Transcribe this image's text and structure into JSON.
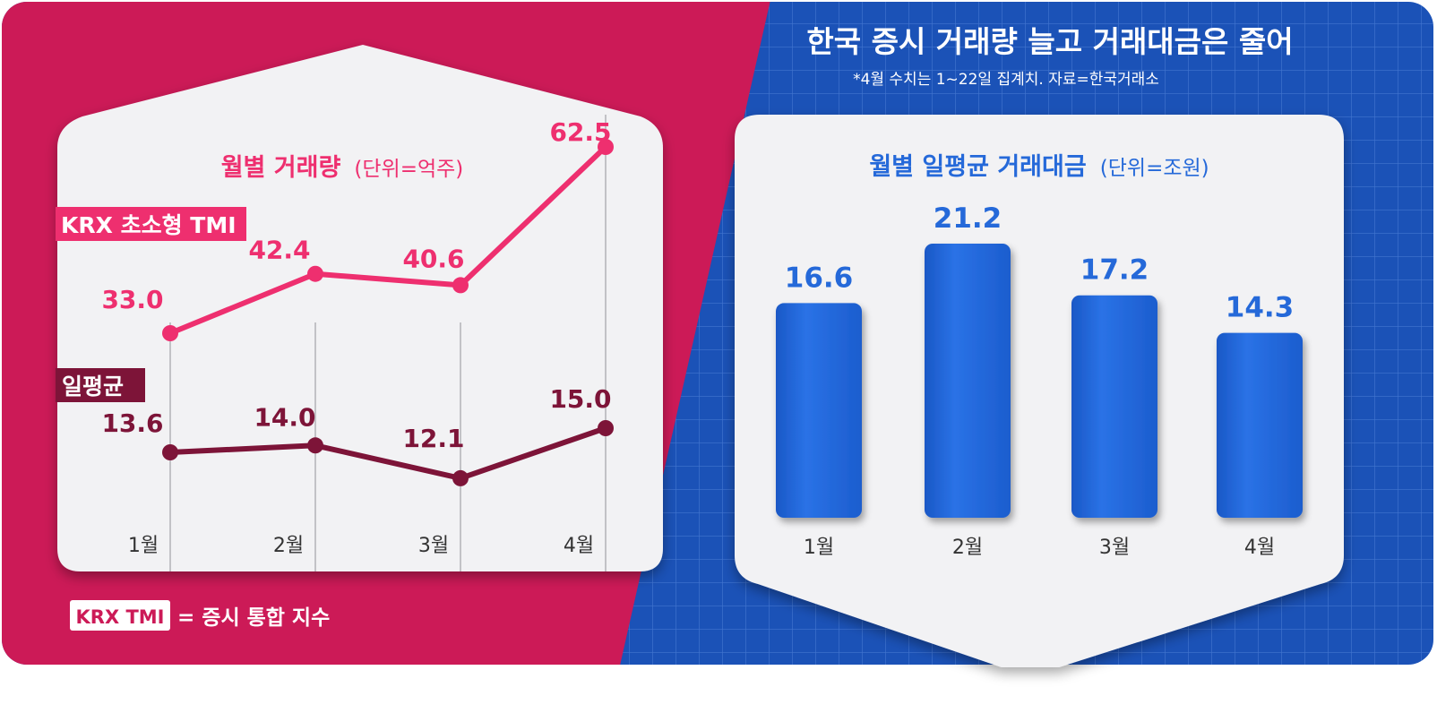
{
  "header": {
    "title": "한국 증시 거래량 늘고 거래대금은 줄어",
    "note": "*4월 수치는 1~22일 집계치. 자료=한국거래소"
  },
  "footer": {
    "badge": "KRX TMI",
    "definition": "= 증시 통합 지수"
  },
  "colors": {
    "left_bg": "#cc1a57",
    "right_bg": "#1b52b7",
    "pink_line": "#ee2f6f",
    "maroon_line": "#7d1438",
    "bar_blue": "#2569d9",
    "card": "#f2f2f4"
  },
  "chart_data": [
    {
      "type": "line",
      "title": "월별 거래량",
      "unit": "(단위=억주)",
      "categories": [
        "1월",
        "2월",
        "3월",
        "4월"
      ],
      "series": [
        {
          "name": "KRX 초소형 TMI",
          "values": [
            33.0,
            42.4,
            40.6,
            62.5
          ],
          "labels": [
            "33.0",
            "42.4",
            "40.6",
            "62.5"
          ]
        },
        {
          "name": "일평균",
          "values": [
            13.6,
            14.0,
            12.1,
            15.0
          ],
          "labels": [
            "13.6",
            "14.0",
            "12.1",
            "15.0"
          ]
        }
      ]
    },
    {
      "type": "bar",
      "title": "월별 일평균 거래대금",
      "unit": "(단위=조원)",
      "categories": [
        "1월",
        "2월",
        "3월",
        "4월"
      ],
      "values": [
        16.6,
        21.2,
        17.2,
        14.3
      ],
      "labels": [
        "16.6",
        "21.2",
        "17.2",
        "14.3"
      ]
    }
  ]
}
